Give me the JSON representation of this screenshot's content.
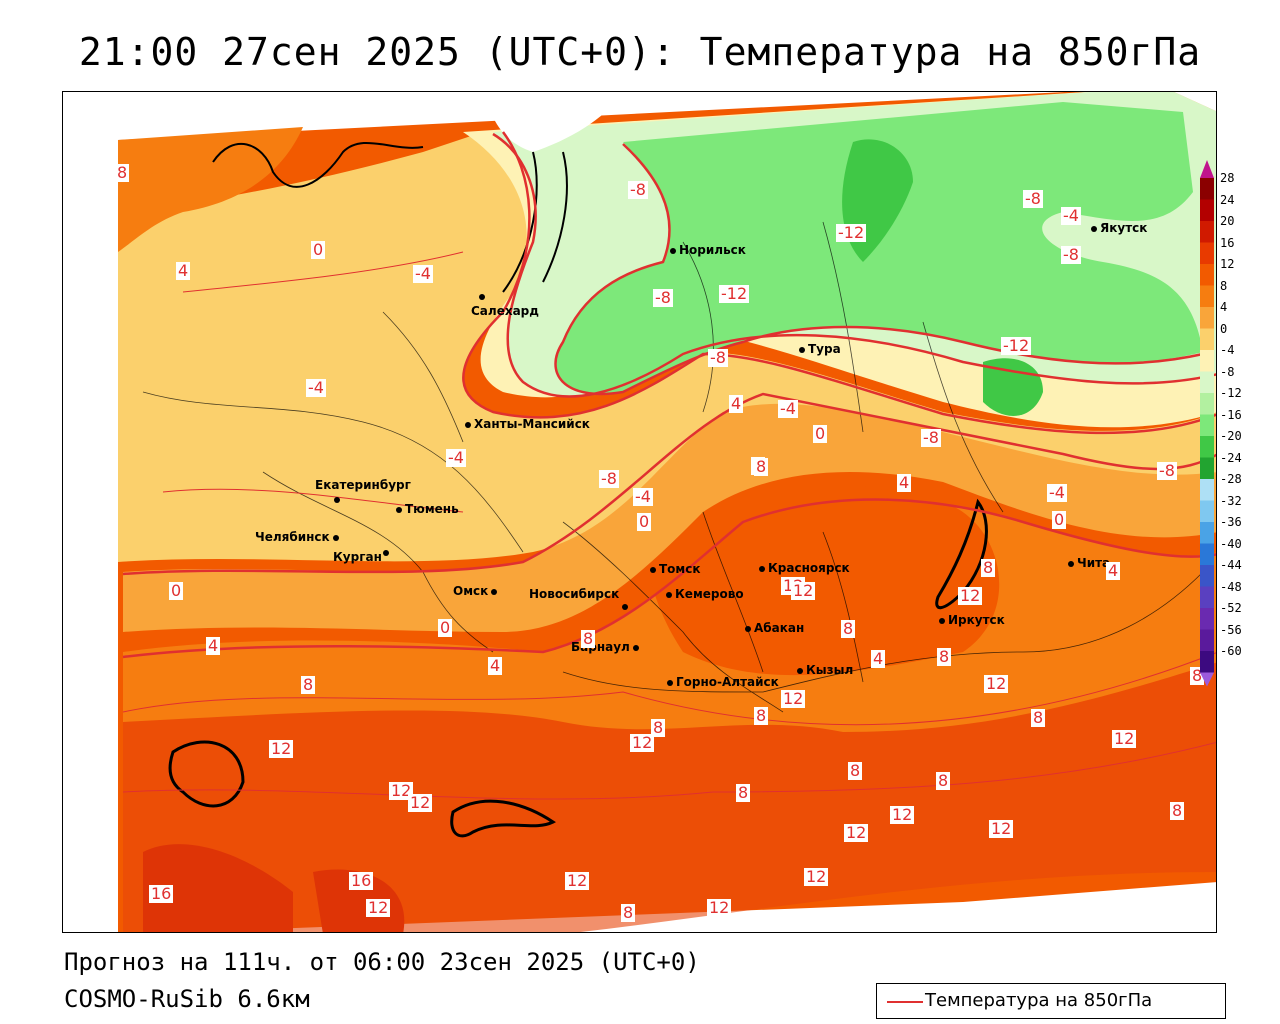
{
  "header": {
    "title": "21:00 27сен 2025 (UTC+0): Температура на 850гПа"
  },
  "footer": {
    "forecast": "Прогноз на 111ч. от 06:00 23сен 2025 (UTC+0)",
    "model": "COSMO-RuSib 6.6км"
  },
  "legend": {
    "label": "Температура на 850гПа",
    "line_color": "#e03030"
  },
  "colorbar": {
    "ticks": [
      "28",
      "24",
      "20",
      "16",
      "12",
      "8",
      "4",
      "0",
      "-4",
      "-8",
      "-12",
      "-16",
      "-20",
      "-24",
      "-28",
      "-32",
      "-36",
      "-40",
      "-44",
      "-48",
      "-52",
      "-56",
      "-60"
    ],
    "colors": [
      "#8b0000",
      "#b30000",
      "#d01a00",
      "#e83a00",
      "#f25a00",
      "#f67d10",
      "#f9a53a",
      "#fbd06c",
      "#fef2b5",
      "#d8f7c8",
      "#b2f0a0",
      "#7de87a",
      "#40c846",
      "#22a430",
      "#aee0f5",
      "#7fc8f0",
      "#4aa3e6",
      "#2a78d8",
      "#3a55c8",
      "#5a40c0",
      "#6a2ab0",
      "#5a1a9c",
      "#3c0a80"
    ]
  },
  "map": {
    "cities": [
      {
        "name": "Якутск"
      },
      {
        "name": "Норильск"
      },
      {
        "name": "Салехард"
      },
      {
        "name": "Тура"
      },
      {
        "name": "Ханты-Мансийск"
      },
      {
        "name": "Екатеринбург"
      },
      {
        "name": "Тюмень"
      },
      {
        "name": "Челябинск"
      },
      {
        "name": "Курган"
      },
      {
        "name": "Омск"
      },
      {
        "name": "Новосибирск"
      },
      {
        "name": "Томск"
      },
      {
        "name": "Кемерово"
      },
      {
        "name": "Красноярск"
      },
      {
        "name": "Барнаул"
      },
      {
        "name": "Абакан"
      },
      {
        "name": "Горно-Алтайск"
      },
      {
        "name": "Кызыл"
      },
      {
        "name": "Иркутск"
      },
      {
        "name": "Чита"
      }
    ],
    "contour_labels": [
      "8",
      "4",
      "0",
      "-4",
      "-4",
      "-8",
      "-12",
      "-8",
      "-4",
      "-8",
      "-12",
      "-8",
      "-4",
      "4",
      "0",
      "-4",
      "-8",
      "-8",
      "-4",
      "0",
      "8",
      "4",
      "4",
      "0",
      "8",
      "12",
      "8",
      "12",
      "12",
      "12",
      "16",
      "16",
      "12",
      "12",
      "8",
      "8",
      "12",
      "12",
      "8",
      "12",
      "12",
      "8",
      "12",
      "12",
      "8",
      "4",
      "4",
      "8",
      "-4",
      "-8",
      "-12",
      "-8",
      "12",
      "8"
    ]
  }
}
